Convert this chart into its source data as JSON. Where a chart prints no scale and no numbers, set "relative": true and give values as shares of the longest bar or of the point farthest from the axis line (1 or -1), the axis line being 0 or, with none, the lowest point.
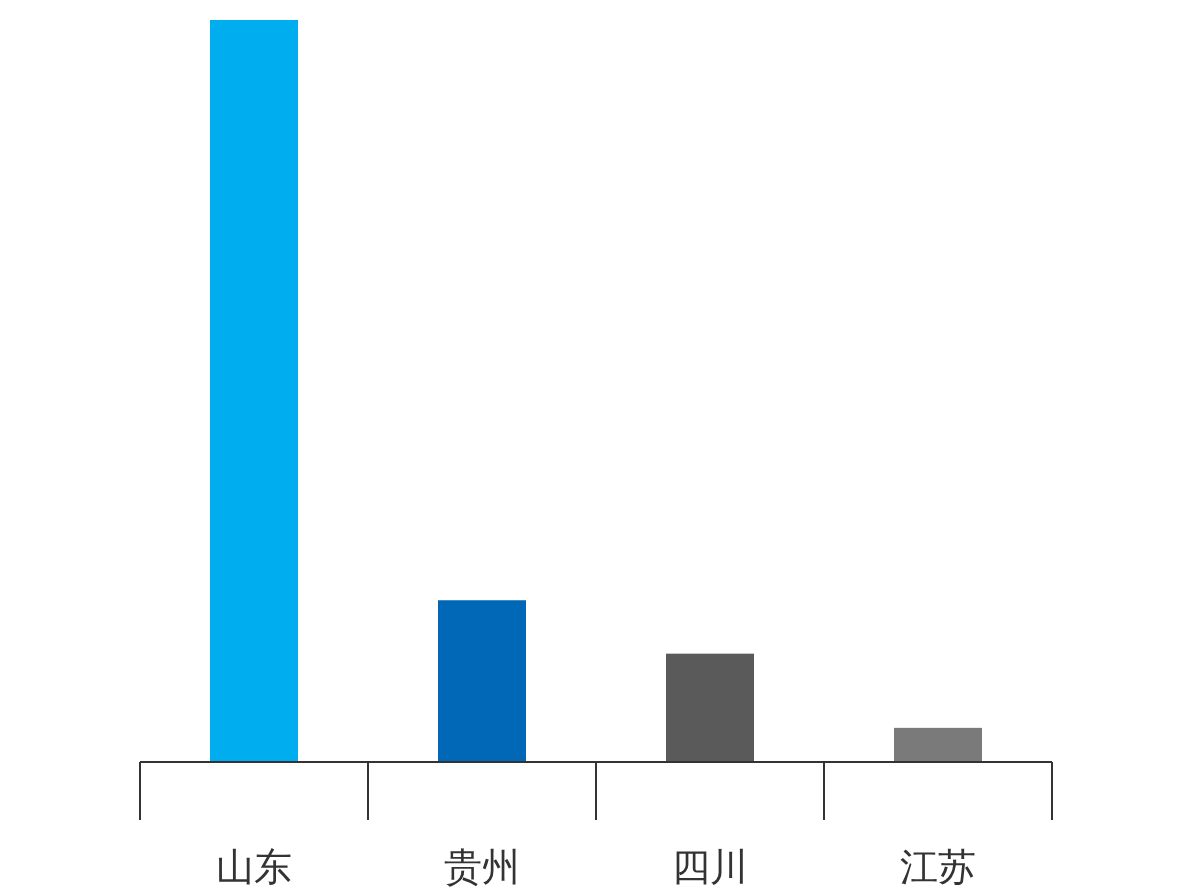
{
  "chart_data": {
    "type": "bar",
    "relative": true,
    "categories": [
      "山东",
      "贵州",
      "四川",
      "江苏"
    ],
    "values": [
      1,
      0.218,
      0.146,
      0.046
    ],
    "colors": [
      "#00aeef",
      "#0068b7",
      "#5a5a5a",
      "#7a7a7a"
    ]
  }
}
